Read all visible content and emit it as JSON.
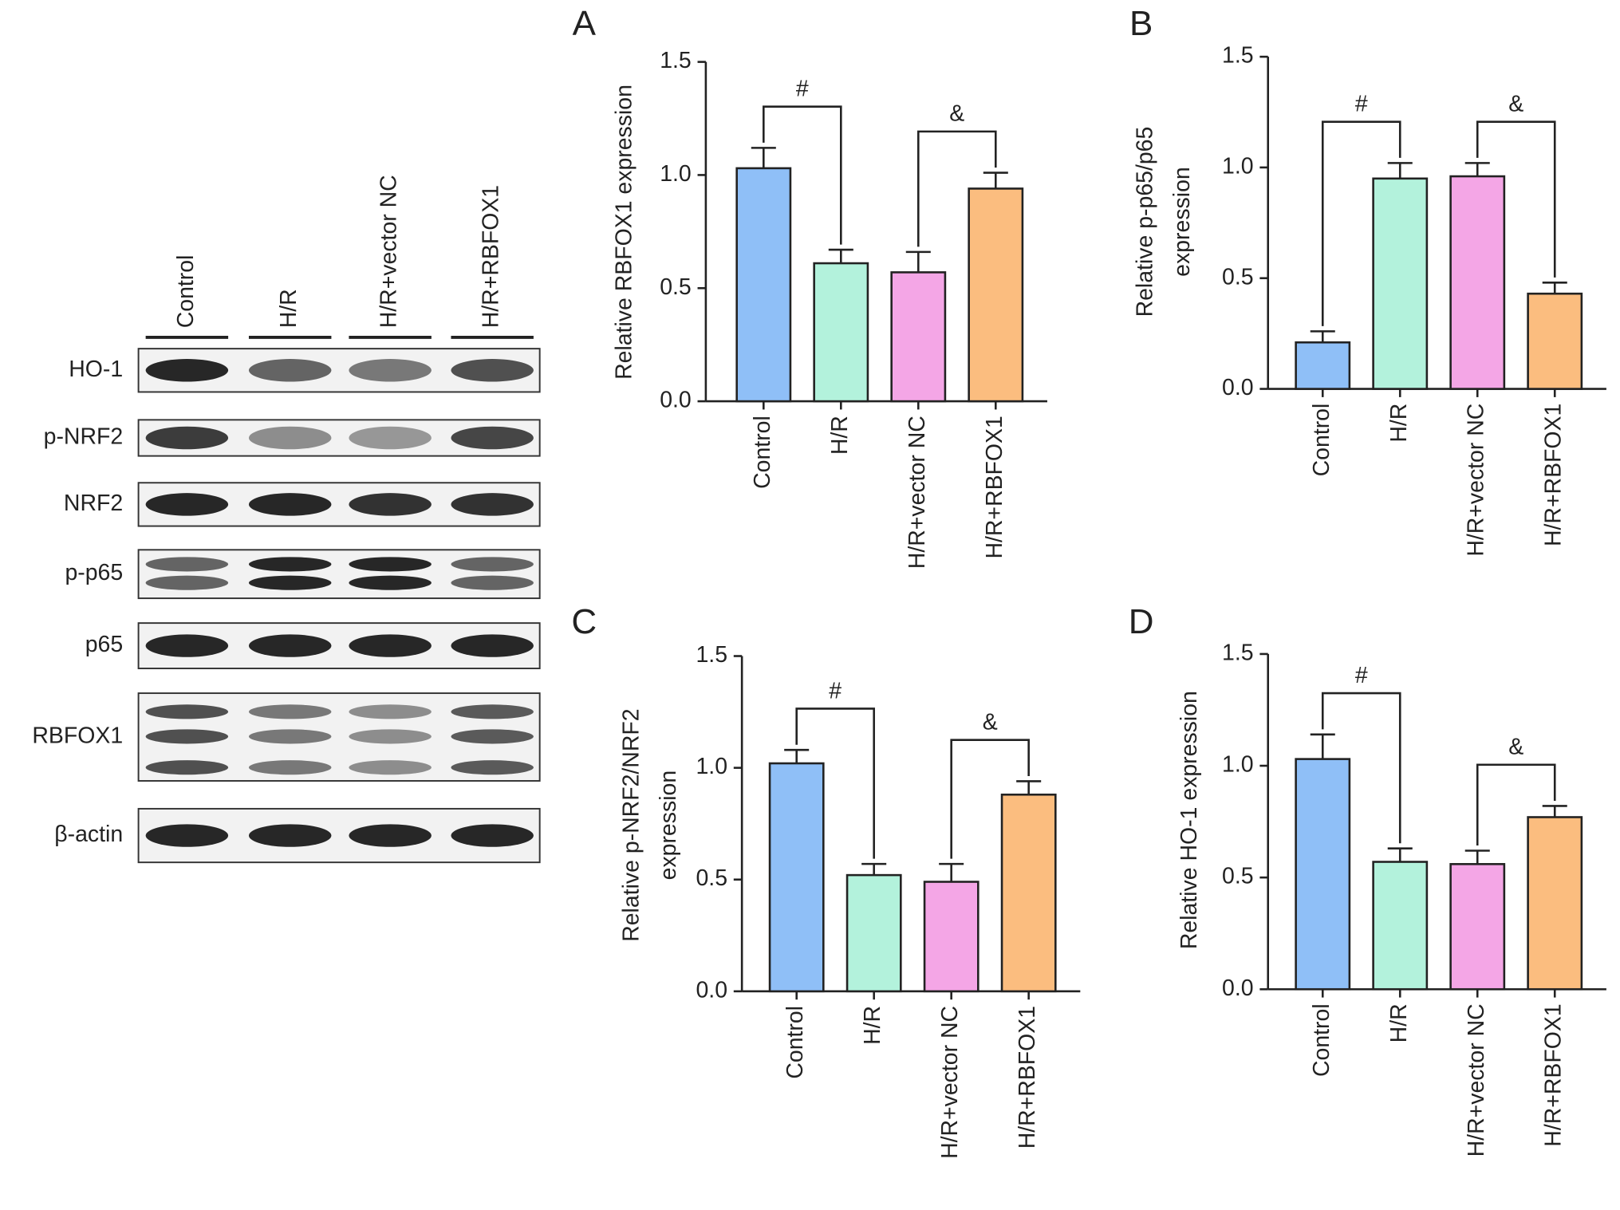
{
  "blot": {
    "lanes": [
      "Control",
      "H/R",
      "H/R+vector NC",
      "H/R+RBFOX1"
    ],
    "rows": [
      "HO-1",
      "p-NRF2",
      "NRF2",
      "p-p65",
      "p65",
      "RBFOX1",
      "β-actin"
    ]
  },
  "chart_data": [
    {
      "type": "bar",
      "panel": "A",
      "ylabel": [
        "Relative RBFOX1 expression"
      ],
      "categories": [
        "Control",
        "H/R",
        "H/R+vector NC",
        "H/R+RBFOX1"
      ],
      "values": [
        1.03,
        0.61,
        0.57,
        0.94
      ],
      "errors": [
        0.09,
        0.06,
        0.09,
        0.07
      ],
      "colors": [
        "#8fbff7",
        "#b3f2dc",
        "#f4a6e6",
        "#fbbd7f"
      ],
      "annotations": [
        "#",
        "&"
      ],
      "ylim": [
        0,
        1.5
      ],
      "yticks": [
        {
          "value": 0,
          "label": "0.0"
        },
        0.5,
        {
          "value": 1,
          "label": "1.0"
        },
        1.5
      ]
    },
    {
      "type": "bar",
      "panel": "B",
      "ylabel": [
        "Relative p-p65/p65",
        "expression"
      ],
      "categories": [
        "Control",
        "H/R",
        "H/R+vector NC",
        "H/R+RBFOX1"
      ],
      "values": [
        0.21,
        0.95,
        0.96,
        0.43
      ],
      "errors": [
        0.05,
        0.07,
        0.06,
        0.05
      ],
      "colors": [
        "#8fbff7",
        "#b3f2dc",
        "#f4a6e6",
        "#fbbd7f"
      ],
      "annotations": [
        "#",
        "&"
      ],
      "ylim": [
        0,
        1.5
      ],
      "yticks": [
        {
          "value": 0,
          "label": "0.0"
        },
        0.5,
        {
          "value": 1,
          "label": "1.0"
        },
        1.5
      ]
    },
    {
      "type": "bar",
      "panel": "C",
      "ylabel": [
        "Relative p-NRF2/NRF2",
        "expression"
      ],
      "categories": [
        "Control",
        "H/R",
        "H/R+vector NC",
        "H/R+RBFOX1"
      ],
      "values": [
        1.02,
        0.52,
        0.49,
        0.88
      ],
      "errors": [
        0.06,
        0.05,
        0.08,
        0.06
      ],
      "colors": [
        "#8fbff7",
        "#b3f2dc",
        "#f4a6e6",
        "#fbbd7f"
      ],
      "annotations": [
        "#",
        "&"
      ],
      "ylim": [
        0,
        1.5
      ],
      "yticks": [
        {
          "value": 0,
          "label": "0.0"
        },
        0.5,
        {
          "value": 1,
          "label": "1.0"
        },
        1.5
      ]
    },
    {
      "type": "bar",
      "panel": "D",
      "ylabel": [
        "Relative HO-1 expression"
      ],
      "categories": [
        "Control",
        "H/R",
        "H/R+vector NC",
        "H/R+RBFOX1"
      ],
      "values": [
        1.03,
        0.57,
        0.56,
        0.77
      ],
      "errors": [
        0.11,
        0.06,
        0.06,
        0.05
      ],
      "colors": [
        "#8fbff7",
        "#b3f2dc",
        "#f4a6e6",
        "#fbbd7f"
      ],
      "annotations": [
        "#",
        "&"
      ],
      "ylim": [
        0,
        1.5
      ],
      "yticks": [
        {
          "value": 0,
          "label": "0.0"
        },
        0.5,
        {
          "value": 1,
          "label": "1.0"
        },
        1.5
      ]
    }
  ]
}
